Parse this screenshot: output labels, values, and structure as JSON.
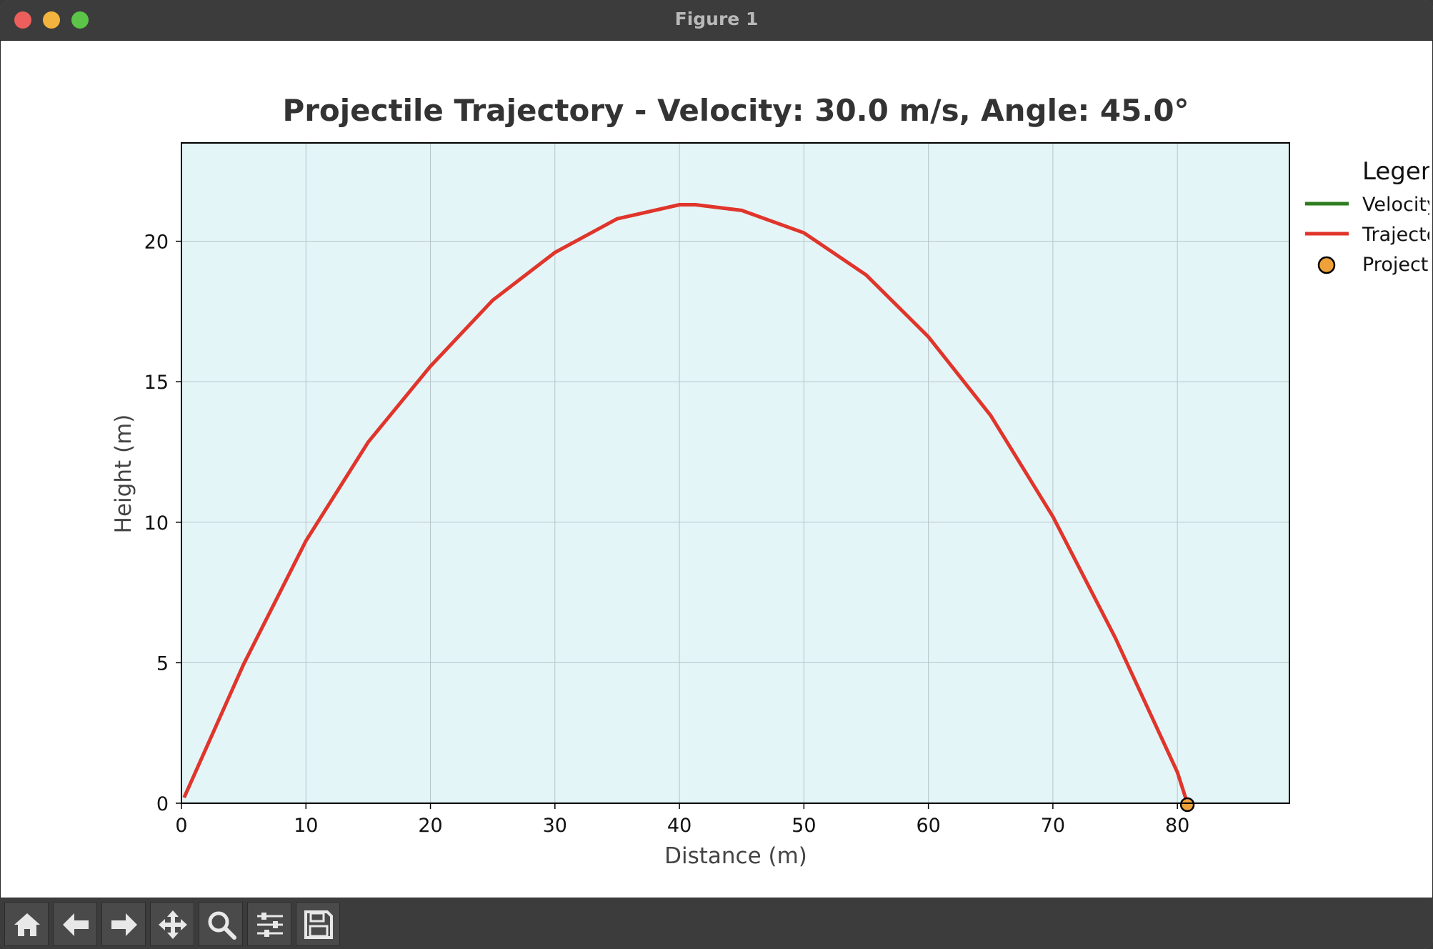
{
  "window": {
    "title": "Figure 1"
  },
  "toolbar": {
    "tools": [
      {
        "name": "home-icon"
      },
      {
        "name": "back-arrow-icon"
      },
      {
        "name": "forward-arrow-icon"
      },
      {
        "name": "pan-move-icon"
      },
      {
        "name": "zoom-magnifier-icon"
      },
      {
        "name": "configure-subplots-icon"
      },
      {
        "name": "save-floppy-icon"
      }
    ]
  },
  "chart_data": {
    "type": "line",
    "title": "Projectile Trajectory - Velocity: 30.0 m/s, Angle: 45.0°",
    "xlabel": "Distance (m)",
    "ylabel": "Height (m)",
    "xlim": [
      0,
      89
    ],
    "ylim": [
      0,
      23.5
    ],
    "xticks": [
      "0",
      "10",
      "20",
      "30",
      "40",
      "50",
      "60",
      "70",
      "80"
    ],
    "yticks": [
      "0",
      "5",
      "10",
      "15",
      "20"
    ],
    "grid": true,
    "background": "#e4f5f8",
    "legend": {
      "title": "Legend",
      "placement": "outside-right",
      "entries": [
        {
          "label": "Velocity",
          "color": "#2e7d1f",
          "marker": "line"
        },
        {
          "label": "Trajectory",
          "color": "#e0352b",
          "marker": "line"
        },
        {
          "label": "Projectile",
          "color": "#f0a23a",
          "marker": "circle"
        }
      ]
    },
    "series": [
      {
        "name": "Trajectory",
        "color": "#e0352b",
        "x": [
          0.21,
          5,
          10,
          15,
          20,
          25,
          30,
          35,
          40,
          41.3,
          45,
          50,
          55,
          60,
          65,
          70,
          75,
          80,
          80.8
        ],
        "y": [
          0.2,
          4.95,
          9.34,
          12.85,
          15.55,
          17.9,
          19.6,
          20.8,
          21.3,
          21.3,
          21.1,
          20.3,
          18.8,
          16.6,
          13.8,
          10.2,
          5.9,
          1.1,
          0
        ]
      }
    ],
    "projectile": {
      "x": 80.8,
      "y": 0,
      "color": "#f0a23a"
    }
  }
}
